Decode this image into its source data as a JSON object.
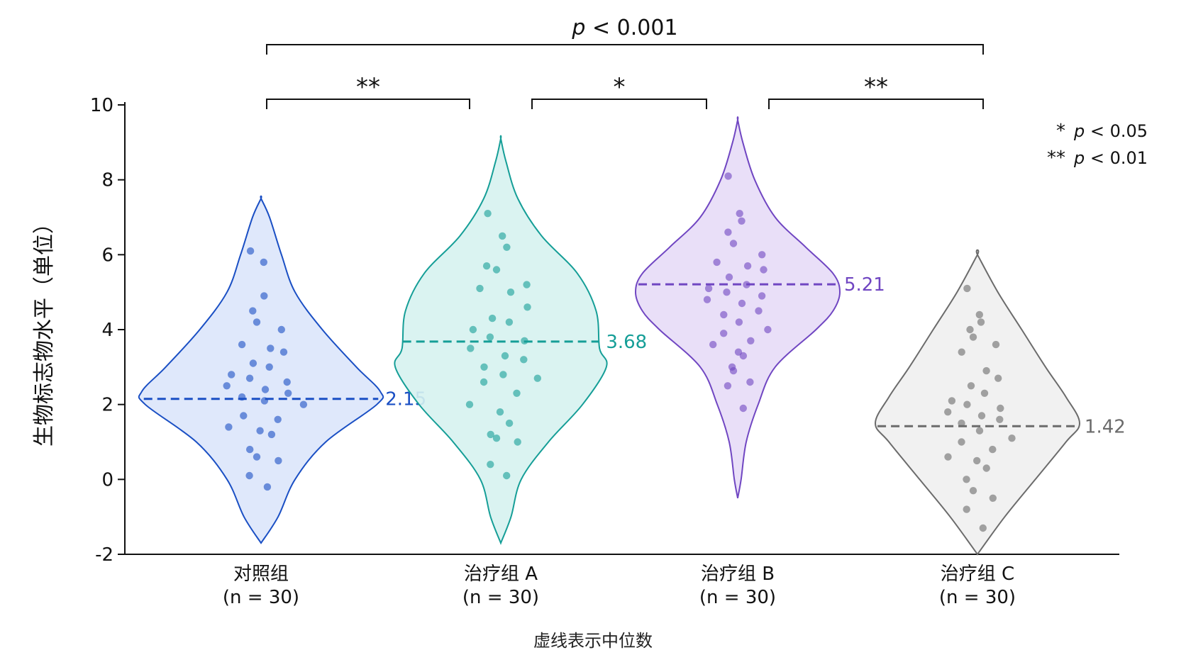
{
  "chart_data": {
    "type": "violin",
    "ylabel": "生物标志物水平（单位）",
    "ylim": [
      -2,
      10
    ],
    "yticks": [
      -2,
      0,
      2,
      4,
      6,
      8,
      10
    ],
    "grid": false,
    "note": "虚线表示中位数",
    "groups": [
      {
        "name": "对照组",
        "n_label": "(n = 30)",
        "median": 2.15,
        "median_label": "2.15",
        "color": "#1a4fc4",
        "fill": "#dbe5fb",
        "range": [
          -1.7,
          7.5
        ],
        "violin": [
          [
            -1.7,
            0
          ],
          [
            -1,
            0.1
          ],
          [
            0,
            0.2
          ],
          [
            1,
            0.38
          ],
          [
            2,
            0.68
          ],
          [
            2.35,
            0.7
          ],
          [
            3,
            0.56
          ],
          [
            4,
            0.36
          ],
          [
            5,
            0.2
          ],
          [
            6,
            0.12
          ],
          [
            7,
            0.05
          ],
          [
            7.5,
            0
          ]
        ],
        "points": [
          6.1,
          5.8,
          4.9,
          4.5,
          4.2,
          4.0,
          3.6,
          3.5,
          3.4,
          3.1,
          3.0,
          2.8,
          2.7,
          2.6,
          2.5,
          2.4,
          2.3,
          2.2,
          2.1,
          2.0,
          1.7,
          1.6,
          1.4,
          1.3,
          1.2,
          0.8,
          0.6,
          0.5,
          0.1,
          -0.2
        ]
      },
      {
        "name": "治疗组 A",
        "n_label": "(n = 30)",
        "median": 3.68,
        "median_label": "3.68",
        "color": "#159e97",
        "fill": "#d6f2ef",
        "range": [
          -1.7,
          9.1
        ],
        "violin": [
          [
            -1.7,
            0
          ],
          [
            -1,
            0.06
          ],
          [
            0,
            0.12
          ],
          [
            1,
            0.28
          ],
          [
            2,
            0.48
          ],
          [
            3,
            0.62
          ],
          [
            3.5,
            0.58
          ],
          [
            4.5,
            0.56
          ],
          [
            5.5,
            0.45
          ],
          [
            6.5,
            0.24
          ],
          [
            7.5,
            0.1
          ],
          [
            8.5,
            0.03
          ],
          [
            9.1,
            0
          ]
        ],
        "points": [
          7.1,
          6.5,
          6.2,
          5.7,
          5.6,
          5.2,
          5.1,
          5.0,
          4.6,
          4.3,
          4.2,
          4.0,
          3.8,
          3.7,
          3.5,
          3.3,
          3.2,
          3.0,
          2.8,
          2.7,
          2.6,
          2.3,
          2.0,
          1.8,
          1.5,
          1.2,
          1.1,
          1.0,
          0.4,
          0.1
        ]
      },
      {
        "name": "治疗组 B",
        "n_label": "(n = 30)",
        "median": 5.21,
        "median_label": "5.21",
        "color": "#7046c2",
        "fill": "#e7dcf7",
        "range": [
          -0.5,
          9.6
        ],
        "violin": [
          [
            -0.5,
            0
          ],
          [
            0,
            0.02
          ],
          [
            1,
            0.05
          ],
          [
            2,
            0.12
          ],
          [
            3,
            0.22
          ],
          [
            4,
            0.46
          ],
          [
            4.5,
            0.56
          ],
          [
            5,
            0.6
          ],
          [
            5.5,
            0.56
          ],
          [
            6.2,
            0.4
          ],
          [
            7,
            0.22
          ],
          [
            8,
            0.1
          ],
          [
            9,
            0.03
          ],
          [
            9.6,
            0
          ]
        ],
        "points": [
          8.1,
          7.1,
          6.9,
          6.6,
          6.3,
          6.0,
          5.8,
          5.7,
          5.6,
          5.4,
          5.2,
          5.1,
          5.0,
          4.9,
          4.8,
          4.7,
          4.5,
          4.4,
          4.2,
          4.0,
          3.9,
          3.7,
          3.6,
          3.4,
          3.3,
          3.0,
          2.9,
          2.6,
          2.5,
          1.9
        ]
      },
      {
        "name": "治疗组 C",
        "n_label": "(n = 30)",
        "median": 1.42,
        "median_label": "1.42",
        "color": "#6b6b6b",
        "fill": "#efefef",
        "range": [
          -2,
          6
        ],
        "violin": [
          [
            -2,
            0
          ],
          [
            -1,
            0.16
          ],
          [
            0,
            0.34
          ],
          [
            1,
            0.52
          ],
          [
            1.5,
            0.6
          ],
          [
            2.2,
            0.52
          ],
          [
            3,
            0.4
          ],
          [
            4,
            0.26
          ],
          [
            5,
            0.12
          ],
          [
            6,
            0
          ]
        ],
        "points": [
          5.1,
          4.4,
          4.2,
          4.0,
          3.8,
          3.6,
          3.4,
          2.9,
          2.7,
          2.5,
          2.3,
          2.1,
          2.0,
          1.9,
          1.8,
          1.7,
          1.6,
          1.5,
          1.3,
          1.1,
          1.0,
          0.8,
          0.6,
          0.5,
          0.3,
          0.0,
          -0.3,
          -0.5,
          -0.8,
          -1.3
        ]
      }
    ],
    "significance": [
      {
        "from": 0,
        "to": 1,
        "label": "**",
        "level": 1
      },
      {
        "from": 1,
        "to": 2,
        "label": "*",
        "level": 1
      },
      {
        "from": 2,
        "to": 3,
        "label": "**",
        "level": 1
      },
      {
        "from": 0,
        "to": 3,
        "label": "p < 0.001",
        "level": 2
      }
    ],
    "legend": [
      {
        "symbol": "*",
        "text": "p < 0.05"
      },
      {
        "symbol": "**",
        "text": "p < 0.01"
      }
    ]
  }
}
